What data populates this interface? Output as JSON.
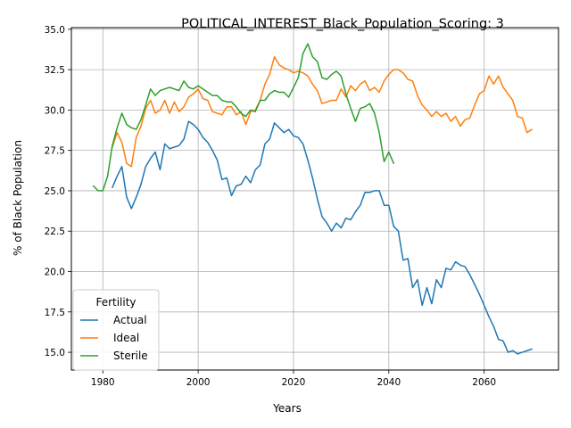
{
  "chart_data": {
    "type": "line",
    "title": "POLITICAL_INTEREST_Black_Population_Scoring: 3",
    "xlabel": "Years",
    "ylabel": "% of Black Population",
    "xlim": [
      1973.4,
      2075.6
    ],
    "ylim": [
      13.9,
      35.1
    ],
    "xticks": [
      1980,
      2000,
      2020,
      2040,
      2060
    ],
    "yticks": [
      15.0,
      17.5,
      20.0,
      22.5,
      25.0,
      27.5,
      30.0,
      32.5,
      35.0
    ],
    "ytick_labels": [
      "15.0",
      "17.5",
      "20.0",
      "22.5",
      "25.0",
      "27.5",
      "30.0",
      "32.5",
      "35.0"
    ],
    "grid": true,
    "legend": {
      "title": "Fertility",
      "placement": "lower-left"
    },
    "colors": {
      "Actual": "#1f77b4",
      "Ideal": "#ff7f0e",
      "Sterile": "#2ca02c"
    },
    "series": [
      {
        "name": "Actual",
        "x": [
          1982,
          1983,
          1984,
          1985,
          1986,
          1987,
          1988,
          1989,
          1990,
          1991,
          1992,
          1993,
          1994,
          1995,
          1996,
          1997,
          1998,
          1999,
          2000,
          2001,
          2002,
          2003,
          2004,
          2005,
          2006,
          2007,
          2008,
          2009,
          2010,
          2011,
          2012,
          2013,
          2014,
          2015,
          2016,
          2017,
          2018,
          2019,
          2020,
          2021,
          2022,
          2023,
          2024,
          2025,
          2026,
          2027,
          2028,
          2029,
          2030,
          2031,
          2032,
          2033,
          2034,
          2035,
          2036,
          2037,
          2038,
          2039,
          2040,
          2041,
          2042,
          2043,
          2044,
          2045,
          2046,
          2047,
          2048,
          2049,
          2050,
          2051,
          2052,
          2053,
          2054,
          2055,
          2056,
          2057,
          2058,
          2059,
          2060,
          2061,
          2062,
          2063,
          2064,
          2065,
          2066,
          2067,
          2068,
          2069,
          2070
        ],
        "values": [
          25.2,
          25.9,
          26.5,
          24.6,
          23.9,
          24.6,
          25.4,
          26.5,
          27.0,
          27.4,
          26.3,
          27.9,
          27.6,
          27.7,
          27.8,
          28.2,
          29.3,
          29.1,
          28.8,
          28.3,
          28.0,
          27.5,
          26.9,
          25.7,
          25.8,
          24.7,
          25.3,
          25.4,
          25.9,
          25.5,
          26.3,
          26.6,
          27.9,
          28.2,
          29.2,
          28.9,
          28.6,
          28.8,
          28.4,
          28.3,
          27.9,
          26.9,
          25.8,
          24.5,
          23.4,
          23.0,
          22.5,
          23.0,
          22.7,
          23.3,
          23.2,
          23.7,
          24.1,
          24.9,
          24.9,
          25.0,
          25.0,
          24.1,
          24.1,
          22.8,
          22.5,
          20.7,
          20.8,
          19.0,
          19.5,
          17.9,
          19.0,
          18.0,
          19.5,
          19.0,
          20.2,
          20.1,
          20.6,
          20.4,
          20.3,
          19.8,
          19.2,
          18.6,
          17.9,
          17.2,
          16.6,
          15.8,
          15.7,
          15.0,
          15.1,
          14.9,
          15.0,
          15.1,
          15.2
        ]
      },
      {
        "name": "Ideal",
        "x": [
          1982,
          1983,
          1984,
          1985,
          1986,
          1987,
          1988,
          1989,
          1990,
          1991,
          1992,
          1993,
          1994,
          1995,
          1996,
          1997,
          1998,
          1999,
          2000,
          2001,
          2002,
          2003,
          2004,
          2005,
          2006,
          2007,
          2008,
          2009,
          2010,
          2011,
          2012,
          2013,
          2014,
          2015,
          2016,
          2017,
          2018,
          2019,
          2020,
          2021,
          2022,
          2023,
          2024,
          2025,
          2026,
          2027,
          2028,
          2029,
          2030,
          2031,
          2032,
          2033,
          2034,
          2035,
          2036,
          2037,
          2038,
          2039,
          2040,
          2041,
          2042,
          2043,
          2044,
          2045,
          2046,
          2047,
          2048,
          2049,
          2050,
          2051,
          2052,
          2053,
          2054,
          2055,
          2056,
          2057,
          2058,
          2059,
          2060,
          2061,
          2062,
          2063,
          2064,
          2065,
          2066,
          2067,
          2068,
          2069,
          2070
        ],
        "values": [
          27.7,
          28.6,
          28.0,
          26.7,
          26.5,
          28.3,
          29.0,
          30.1,
          30.6,
          29.8,
          30.0,
          30.6,
          29.8,
          30.5,
          29.9,
          30.2,
          30.8,
          31.0,
          31.3,
          30.7,
          30.6,
          29.9,
          29.8,
          29.7,
          30.2,
          30.2,
          29.7,
          29.9,
          29.1,
          29.9,
          30.0,
          30.6,
          31.6,
          32.2,
          33.3,
          32.8,
          32.6,
          32.5,
          32.3,
          32.4,
          32.3,
          32.1,
          31.6,
          31.2,
          30.4,
          30.5,
          30.6,
          30.6,
          31.3,
          30.8,
          31.5,
          31.2,
          31.6,
          31.8,
          31.2,
          31.4,
          31.1,
          31.8,
          32.2,
          32.5,
          32.5,
          32.3,
          31.9,
          31.8,
          30.9,
          30.3,
          30.0,
          29.6,
          29.9,
          29.6,
          29.8,
          29.3,
          29.6,
          29.0,
          29.4,
          29.5,
          30.3,
          31.0,
          31.2,
          32.1,
          31.6,
          32.1,
          31.4,
          31.0,
          30.6,
          29.6,
          29.5,
          28.6,
          28.8
        ]
      },
      {
        "name": "Sterile",
        "x": [
          1978,
          1979,
          1980,
          1981,
          1982,
          1983,
          1984,
          1985,
          1986,
          1987,
          1988,
          1989,
          1990,
          1991,
          1992,
          1993,
          1994,
          1995,
          1996,
          1997,
          1998,
          1999,
          2000,
          2001,
          2002,
          2003,
          2004,
          2005,
          2006,
          2007,
          2008,
          2009,
          2010,
          2011,
          2012,
          2013,
          2014,
          2015,
          2016,
          2017,
          2018,
          2019,
          2020,
          2021,
          2022,
          2023,
          2024,
          2025,
          2026,
          2027,
          2028,
          2029,
          2030,
          2031,
          2032,
          2033,
          2034,
          2035,
          2036,
          2037,
          2038,
          2039,
          2040,
          2041
        ],
        "values": [
          25.3,
          25.0,
          25.0,
          25.9,
          27.8,
          28.9,
          29.8,
          29.1,
          28.9,
          28.8,
          29.4,
          30.3,
          31.3,
          30.9,
          31.2,
          31.3,
          31.4,
          31.3,
          31.2,
          31.8,
          31.4,
          31.3,
          31.5,
          31.3,
          31.1,
          30.9,
          30.9,
          30.6,
          30.5,
          30.5,
          30.2,
          29.8,
          29.6,
          30.0,
          29.9,
          30.6,
          30.6,
          31.0,
          31.2,
          31.1,
          31.1,
          30.8,
          31.4,
          32.0,
          33.5,
          34.1,
          33.3,
          33.0,
          32.0,
          31.9,
          32.2,
          32.4,
          32.1,
          31.0,
          30.1,
          29.3,
          30.1,
          30.2,
          30.4,
          29.8,
          28.6,
          26.8,
          27.4,
          26.7
        ]
      }
    ]
  }
}
